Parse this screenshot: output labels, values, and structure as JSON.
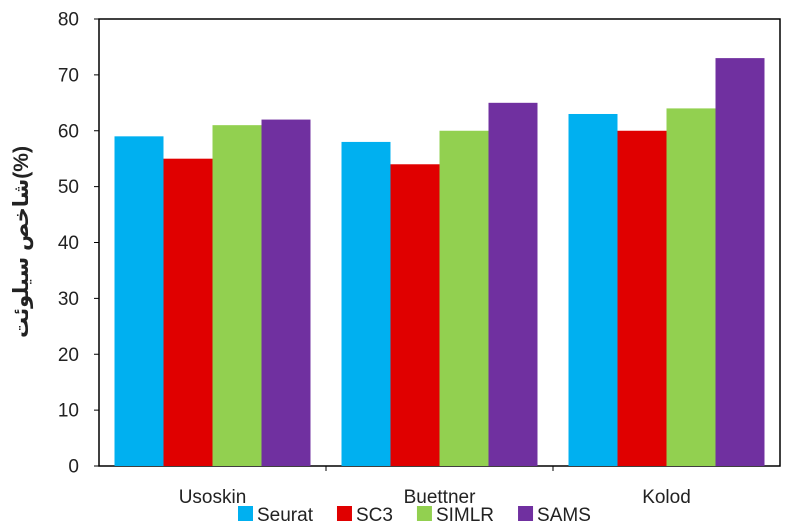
{
  "chart_data": {
    "type": "bar",
    "categories": [
      "Usoskin",
      "Buettner",
      "Kolod"
    ],
    "series": [
      {
        "name": "Seurat",
        "color": "#00b0f0",
        "values": [
          59,
          58,
          63
        ]
      },
      {
        "name": "SC3",
        "color": "#e00000",
        "values": [
          55,
          54,
          60
        ]
      },
      {
        "name": "SIMLR",
        "color": "#92d050",
        "values": [
          61,
          60,
          64
        ]
      },
      {
        "name": "SAMS",
        "color": "#7030a0",
        "values": [
          62,
          65,
          73
        ]
      }
    ],
    "ylabel": "شاخص سیلوئت(%)",
    "xlabel": "",
    "ylim": [
      0,
      80
    ],
    "yticks": [
      0,
      10,
      20,
      30,
      40,
      50,
      60,
      70,
      80
    ],
    "grid": false,
    "legend_position": "bottom"
  }
}
